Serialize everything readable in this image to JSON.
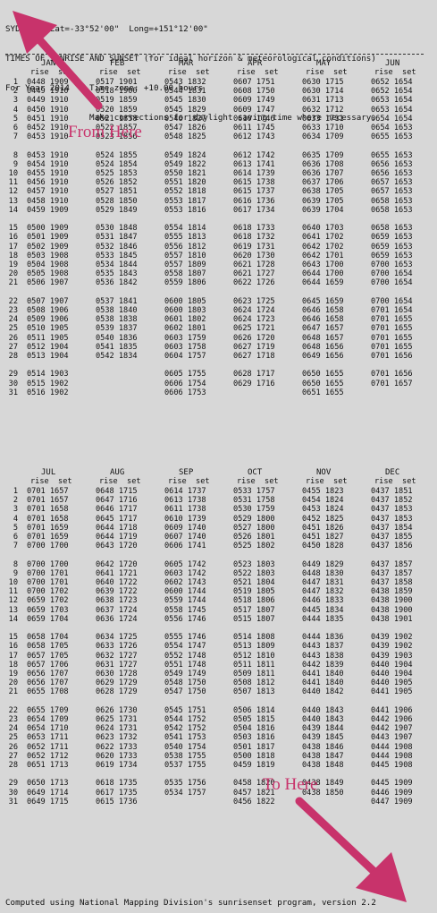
{
  "header_lines": [
    "SYDNEY   Lat=-33°52'00\"  Long=+151°12'00\"",
    "TIMES OF SUNRISE AND SUNSET (for ideal horizon & meteorological conditions)",
    "For Year 2014    Time zone: +10.00 hours",
    "                 Make corrections for daylight saving time where necessary."
  ],
  "col_header": "rise  set",
  "footer": "Computed using National Mapping Division's sunrisenset program, version 2.2",
  "annotations": {
    "from": "From Here",
    "to": "To Here",
    "color": "#c8336b"
  },
  "blocks": [
    {
      "months": [
        "JAN",
        "FEB",
        "MAR",
        "APR",
        "MAY",
        "JUN"
      ],
      "rows": [
        [
          "1",
          "0448 1909",
          "0517 1901",
          "0543 1832",
          "0607 1751",
          "0630 1715",
          "0652 1654"
        ],
        [
          "2",
          "0449 1910",
          "0518 1900",
          "0544 1831",
          "0608 1750",
          "0630 1714",
          "0652 1654"
        ],
        [
          "3",
          "0449 1910",
          "0519 1859",
          "0545 1830",
          "0609 1749",
          "0631 1713",
          "0653 1654"
        ],
        [
          "4",
          "0450 1910",
          "0520 1859",
          "0545 1829",
          "0609 1747",
          "0632 1712",
          "0653 1654"
        ],
        [
          "5",
          "0451 1910",
          "0521 1858",
          "0546 1827",
          "0610 1746",
          "0633 1711",
          "0654 1654"
        ],
        [
          "6",
          "0452 1910",
          "0522 1857",
          "0547 1826",
          "0611 1745",
          "0633 1710",
          "0654 1653"
        ],
        [
          "7",
          "0453 1910",
          "0523 1856",
          "0548 1825",
          "0612 1743",
          "0634 1709",
          "0655 1653"
        ],
        null,
        [
          "8",
          "0453 1910",
          "0524 1855",
          "0549 1824",
          "0612 1742",
          "0635 1709",
          "0655 1653"
        ],
        [
          "9",
          "0454 1910",
          "0524 1854",
          "0549 1822",
          "0613 1741",
          "0636 1708",
          "0656 1653"
        ],
        [
          "10",
          "0455 1910",
          "0525 1853",
          "0550 1821",
          "0614 1739",
          "0636 1707",
          "0656 1653"
        ],
        [
          "11",
          "0456 1910",
          "0526 1852",
          "0551 1820",
          "0615 1738",
          "0637 1706",
          "0657 1653"
        ],
        [
          "12",
          "0457 1910",
          "0527 1851",
          "0552 1818",
          "0615 1737",
          "0638 1705",
          "0657 1653"
        ],
        [
          "13",
          "0458 1910",
          "0528 1850",
          "0553 1817",
          "0616 1736",
          "0639 1705",
          "0658 1653"
        ],
        [
          "14",
          "0459 1909",
          "0529 1849",
          "0553 1816",
          "0617 1734",
          "0639 1704",
          "0658 1653"
        ],
        null,
        [
          "15",
          "0500 1909",
          "0530 1848",
          "0554 1814",
          "0618 1733",
          "0640 1703",
          "0658 1653"
        ],
        [
          "16",
          "0501 1909",
          "0531 1847",
          "0555 1813",
          "0618 1732",
          "0641 1702",
          "0659 1653"
        ],
        [
          "17",
          "0502 1909",
          "0532 1846",
          "0556 1812",
          "0619 1731",
          "0642 1702",
          "0659 1653"
        ],
        [
          "18",
          "0503 1908",
          "0533 1845",
          "0557 1810",
          "0620 1730",
          "0642 1701",
          "0659 1653"
        ],
        [
          "19",
          "0504 1908",
          "0534 1844",
          "0557 1809",
          "0621 1728",
          "0643 1700",
          "0700 1653"
        ],
        [
          "20",
          "0505 1908",
          "0535 1843",
          "0558 1807",
          "0621 1727",
          "0644 1700",
          "0700 1654"
        ],
        [
          "21",
          "0506 1907",
          "0536 1842",
          "0559 1806",
          "0622 1726",
          "0644 1659",
          "0700 1654"
        ],
        null,
        [
          "22",
          "0507 1907",
          "0537 1841",
          "0600 1805",
          "0623 1725",
          "0645 1659",
          "0700 1654"
        ],
        [
          "23",
          "0508 1906",
          "0538 1840",
          "0600 1803",
          "0624 1724",
          "0646 1658",
          "0701 1654"
        ],
        [
          "24",
          "0509 1906",
          "0538 1838",
          "0601 1802",
          "0624 1723",
          "0646 1658",
          "0701 1655"
        ],
        [
          "25",
          "0510 1905",
          "0539 1837",
          "0602 1801",
          "0625 1721",
          "0647 1657",
          "0701 1655"
        ],
        [
          "26",
          "0511 1905",
          "0540 1836",
          "0603 1759",
          "0626 1720",
          "0648 1657",
          "0701 1655"
        ],
        [
          "27",
          "0512 1904",
          "0541 1835",
          "0603 1758",
          "0627 1719",
          "0648 1656",
          "0701 1655"
        ],
        [
          "28",
          "0513 1904",
          "0542 1834",
          "0604 1757",
          "0627 1718",
          "0649 1656",
          "0701 1656"
        ],
        null,
        [
          "29",
          "0514 1903",
          "",
          "0605 1755",
          "0628 1717",
          "0650 1655",
          "0701 1656"
        ],
        [
          "30",
          "0515 1902",
          "",
          "0606 1754",
          "0629 1716",
          "0650 1655",
          "0701 1657"
        ],
        [
          "31",
          "0516 1902",
          "",
          "0606 1753",
          "",
          "0651 1655",
          ""
        ]
      ]
    },
    {
      "months": [
        "JUL",
        "AUG",
        "SEP",
        "OCT",
        "NOV",
        "DEC"
      ],
      "rows": [
        [
          "1",
          "0701 1657",
          "0648 1715",
          "0614 1737",
          "0533 1757",
          "0455 1823",
          "0437 1851"
        ],
        [
          "2",
          "0701 1657",
          "0647 1716",
          "0613 1738",
          "0531 1758",
          "0454 1824",
          "0437 1852"
        ],
        [
          "3",
          "0701 1658",
          "0646 1717",
          "0611 1738",
          "0530 1759",
          "0453 1824",
          "0437 1853"
        ],
        [
          "4",
          "0701 1658",
          "0645 1717",
          "0610 1739",
          "0529 1800",
          "0452 1825",
          "0437 1853"
        ],
        [
          "5",
          "0701 1659",
          "0644 1718",
          "0609 1740",
          "0527 1800",
          "0451 1826",
          "0437 1854"
        ],
        [
          "6",
          "0701 1659",
          "0644 1719",
          "0607 1740",
          "0526 1801",
          "0451 1827",
          "0437 1855"
        ],
        [
          "7",
          "0700 1700",
          "0643 1720",
          "0606 1741",
          "0525 1802",
          "0450 1828",
          "0437 1856"
        ],
        null,
        [
          "8",
          "0700 1700",
          "0642 1720",
          "0605 1742",
          "0523 1803",
          "0449 1829",
          "0437 1857"
        ],
        [
          "9",
          "0700 1701",
          "0641 1721",
          "0603 1742",
          "0522 1803",
          "0448 1830",
          "0437 1857"
        ],
        [
          "10",
          "0700 1701",
          "0640 1722",
          "0602 1743",
          "0521 1804",
          "0447 1831",
          "0437 1858"
        ],
        [
          "11",
          "0700 1702",
          "0639 1722",
          "0600 1744",
          "0519 1805",
          "0447 1832",
          "0438 1859"
        ],
        [
          "12",
          "0659 1702",
          "0638 1723",
          "0559 1744",
          "0518 1806",
          "0446 1833",
          "0438 1900"
        ],
        [
          "13",
          "0659 1703",
          "0637 1724",
          "0558 1745",
          "0517 1807",
          "0445 1834",
          "0438 1900"
        ],
        [
          "14",
          "0659 1704",
          "0636 1724",
          "0556 1746",
          "0515 1807",
          "0444 1835",
          "0438 1901"
        ],
        null,
        [
          "15",
          "0658 1704",
          "0634 1725",
          "0555 1746",
          "0514 1808",
          "0444 1836",
          "0439 1902"
        ],
        [
          "16",
          "0658 1705",
          "0633 1726",
          "0554 1747",
          "0513 1809",
          "0443 1837",
          "0439 1902"
        ],
        [
          "17",
          "0657 1705",
          "0632 1727",
          "0552 1748",
          "0512 1810",
          "0443 1838",
          "0439 1903"
        ],
        [
          "18",
          "0657 1706",
          "0631 1727",
          "0551 1748",
          "0511 1811",
          "0442 1839",
          "0440 1904"
        ],
        [
          "19",
          "0656 1707",
          "0630 1728",
          "0549 1749",
          "0509 1811",
          "0441 1840",
          "0440 1904"
        ],
        [
          "20",
          "0656 1707",
          "0629 1729",
          "0548 1750",
          "0508 1812",
          "0441 1840",
          "0440 1905"
        ],
        [
          "21",
          "0655 1708",
          "0628 1729",
          "0547 1750",
          "0507 1813",
          "0440 1842",
          "0441 1905"
        ],
        null,
        [
          "22",
          "0655 1709",
          "0626 1730",
          "0545 1751",
          "0506 1814",
          "0440 1843",
          "0441 1906"
        ],
        [
          "23",
          "0654 1709",
          "0625 1731",
          "0544 1752",
          "0505 1815",
          "0440 1843",
          "0442 1906"
        ],
        [
          "24",
          "0654 1710",
          "0624 1731",
          "0542 1752",
          "0504 1816",
          "0439 1844",
          "0442 1907"
        ],
        [
          "25",
          "0653 1711",
          "0623 1732",
          "0541 1753",
          "0503 1816",
          "0439 1845",
          "0443 1907"
        ],
        [
          "26",
          "0652 1711",
          "0622 1733",
          "0540 1754",
          "0501 1817",
          "0438 1846",
          "0444 1908"
        ],
        [
          "27",
          "0652 1712",
          "0620 1733",
          "0538 1755",
          "0500 1818",
          "0438 1847",
          "0444 1908"
        ],
        [
          "28",
          "0651 1713",
          "0619 1734",
          "0537 1755",
          "0459 1819",
          "0438 1848",
          "0445 1908"
        ],
        null,
        [
          "29",
          "0650 1713",
          "0618 1735",
          "0535 1756",
          "0458 1820",
          "0438 1849",
          "0445 1909"
        ],
        [
          "30",
          "0649 1714",
          "0617 1735",
          "0534 1757",
          "0457 1821",
          "0438 1850",
          "0446 1909"
        ],
        [
          "31",
          "0649 1715",
          "0615 1736",
          "",
          "0456 1822",
          "",
          "0447 1909"
        ]
      ]
    }
  ]
}
